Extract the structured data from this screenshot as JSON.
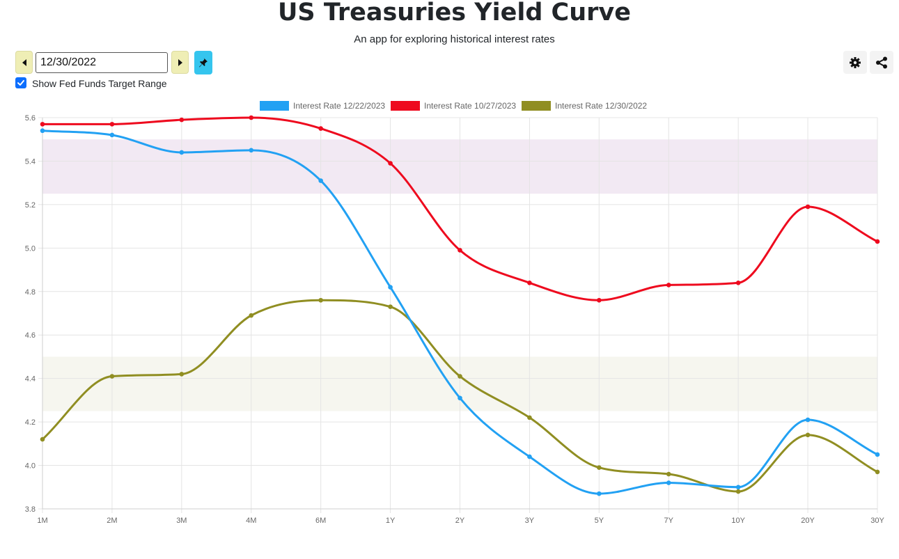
{
  "header": {
    "title": "US Treasuries Yield Curve",
    "subtitle": "An app for exploring historical interest rates"
  },
  "controls": {
    "date_value": "12/30/2022",
    "prev_icon": "caret-left-icon",
    "next_icon": "caret-right-icon",
    "pin_icon": "pin-icon",
    "fed_funds_checked": true,
    "fed_funds_label": "Show Fed Funds Target Range",
    "settings_icon": "gear-icon",
    "share_icon": "share-icon"
  },
  "colors": {
    "prev_next_bg": "#efeeb5",
    "pin_bg": "#35c5ee",
    "checkbox": "#0d6efd"
  },
  "chart_data": {
    "type": "line",
    "title": "",
    "xlabel": "",
    "ylabel": "",
    "categories": [
      "1M",
      "2M",
      "3M",
      "4M",
      "6M",
      "1Y",
      "2Y",
      "3Y",
      "5Y",
      "7Y",
      "10Y",
      "20Y",
      "30Y"
    ],
    "ylim": [
      3.8,
      5.6
    ],
    "yticks": [
      "3.8",
      "4.0",
      "4.2",
      "4.4",
      "4.6",
      "4.8",
      "5.0",
      "5.2",
      "5.4",
      "5.6"
    ],
    "grid": true,
    "legend_position": "top",
    "series": [
      {
        "name": "Interest Rate 12/22/2023",
        "color": "#22a1f3",
        "values": [
          5.54,
          5.52,
          5.44,
          5.45,
          5.31,
          4.82,
          4.31,
          4.04,
          3.87,
          3.92,
          3.9,
          4.21,
          4.05
        ]
      },
      {
        "name": "Interest Rate 10/27/2023",
        "color": "#ee0a1e",
        "values": [
          5.57,
          5.57,
          5.59,
          5.6,
          5.55,
          5.39,
          4.99,
          4.84,
          4.76,
          4.83,
          4.84,
          5.19,
          5.03
        ]
      },
      {
        "name": "Interest Rate 12/30/2022",
        "color": "#908e22",
        "values": [
          4.12,
          4.41,
          4.42,
          4.69,
          4.76,
          4.73,
          4.41,
          4.22,
          3.99,
          3.96,
          3.88,
          4.14,
          3.97
        ]
      }
    ],
    "bands": [
      {
        "low": 5.25,
        "high": 5.5,
        "color": "#f2e9f3"
      },
      {
        "low": 4.25,
        "high": 4.5,
        "color": "#f6f6ef"
      }
    ]
  }
}
